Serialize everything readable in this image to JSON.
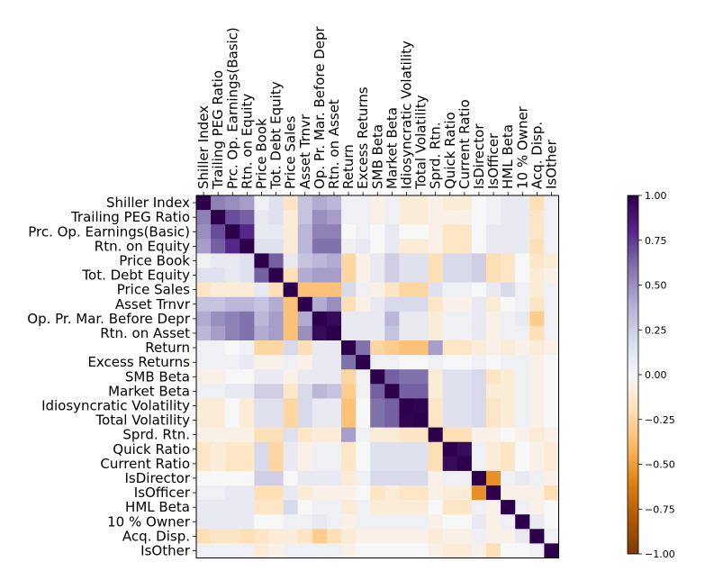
{
  "chart_data": {
    "type": "heatmap",
    "title": "",
    "labels": [
      "Shiller Index",
      "Trailing PEG Ratio",
      "Prc. Op. Earnings(Basic)",
      "Rtn. on Equity",
      "Price Book",
      "Tot. Debt Equity",
      "Price Sales",
      "Asset Trnvr",
      "Op. Pr. Mar. Before Depr",
      "Rtn. on Asset",
      "Return",
      "Excess Returns",
      "SMB Beta",
      "Market Beta",
      "Idiosyncratic Volatility",
      "Total Volatility",
      "Sprd. Rtn.",
      "Quick Ratio",
      "Current Ratio",
      "IsDirector",
      "IsOfficer",
      "HML Beta",
      "10 % Owner",
      "Acq. Disp.",
      "IsOther"
    ],
    "colorbar": {
      "min": -1.0,
      "max": 1.0,
      "ticks": [
        1.0,
        0.75,
        0.5,
        0.25,
        0.0,
        -0.25,
        -0.5,
        -0.75,
        -1.0
      ],
      "tick_labels": [
        "1.00",
        "0.75",
        "0.50",
        "0.25",
        "0.00",
        "−0.25",
        "−0.50",
        "−0.75",
        "−1.00"
      ],
      "colormap": "PuOr_r",
      "neg_color": "#7f3b08",
      "zero_color": "#f7f7f7",
      "pos_color": "#2d004b"
    },
    "values": [
      [
        1.0,
        0.55,
        0.5,
        0.45,
        0.05,
        0.15,
        -0.15,
        0.3,
        0.4,
        0.35,
        0.05,
        0.05,
        -0.05,
        0.05,
        -0.1,
        -0.1,
        -0.05,
        -0.1,
        -0.1,
        0.0,
        0.05,
        0.1,
        0.1,
        -0.2,
        0.05
      ],
      [
        0.55,
        1.0,
        0.7,
        0.65,
        0.1,
        0.15,
        -0.1,
        0.3,
        0.5,
        0.45,
        0.05,
        0.05,
        -0.05,
        0.05,
        -0.1,
        -0.1,
        -0.05,
        -0.05,
        -0.05,
        0.0,
        0.05,
        0.1,
        0.1,
        -0.15,
        0.05
      ],
      [
        0.5,
        0.7,
        1.0,
        0.8,
        0.1,
        0.1,
        -0.1,
        0.35,
        0.55,
        0.55,
        0.0,
        0.05,
        0.0,
        0.1,
        0.0,
        0.0,
        -0.05,
        -0.15,
        -0.15,
        0.0,
        0.1,
        0.1,
        0.1,
        -0.15,
        0.05
      ],
      [
        0.45,
        0.65,
        0.8,
        1.0,
        0.15,
        0.15,
        -0.1,
        0.35,
        0.6,
        0.6,
        0.05,
        0.1,
        0.0,
        0.1,
        -0.1,
        -0.1,
        -0.05,
        -0.15,
        -0.15,
        0.0,
        0.1,
        0.1,
        0.1,
        -0.2,
        0.05
      ],
      [
        0.05,
        0.1,
        0.1,
        0.15,
        1.0,
        0.65,
        0.1,
        0.3,
        0.35,
        0.4,
        -0.25,
        -0.05,
        0.1,
        0.25,
        0.15,
        0.15,
        -0.2,
        0.2,
        0.2,
        0.25,
        -0.2,
        -0.15,
        0.0,
        -0.15,
        -0.1
      ],
      [
        0.15,
        0.15,
        0.1,
        0.15,
        0.65,
        1.0,
        -0.2,
        0.4,
        0.45,
        0.45,
        -0.25,
        -0.05,
        0.1,
        0.25,
        0.15,
        0.15,
        -0.2,
        0.2,
        0.2,
        0.25,
        -0.2,
        -0.15,
        0.0,
        -0.1,
        -0.05
      ],
      [
        -0.15,
        -0.1,
        -0.1,
        -0.1,
        0.1,
        -0.2,
        1.0,
        -0.35,
        -0.35,
        -0.35,
        0.2,
        0.05,
        -0.05,
        -0.15,
        -0.25,
        -0.25,
        0.15,
        0.05,
        0.05,
        0.0,
        0.1,
        0.2,
        0.05,
        -0.1,
        0.05
      ],
      [
        0.3,
        0.3,
        0.35,
        0.35,
        0.3,
        0.4,
        -0.35,
        1.0,
        0.4,
        0.5,
        -0.2,
        -0.05,
        0.1,
        0.2,
        0.2,
        0.2,
        -0.15,
        -0.05,
        -0.05,
        0.1,
        -0.1,
        0.0,
        0.05,
        -0.15,
        0.05
      ],
      [
        0.4,
        0.5,
        0.55,
        0.6,
        0.35,
        0.45,
        -0.35,
        0.4,
        1.0,
        0.95,
        0.1,
        0.1,
        0.1,
        0.35,
        0.1,
        0.1,
        -0.1,
        0.05,
        0.05,
        0.1,
        -0.05,
        0.05,
        0.1,
        -0.3,
        0.05
      ],
      [
        0.35,
        0.45,
        0.55,
        0.6,
        0.4,
        0.45,
        -0.35,
        0.5,
        0.95,
        1.0,
        0.1,
        0.1,
        0.1,
        0.3,
        0.1,
        0.1,
        -0.1,
        0.05,
        0.05,
        0.1,
        -0.05,
        0.05,
        0.05,
        -0.2,
        0.05
      ],
      [
        0.05,
        0.05,
        0.0,
        0.05,
        -0.25,
        -0.25,
        0.2,
        -0.2,
        0.1,
        0.1,
        1.0,
        0.6,
        -0.25,
        -0.3,
        -0.35,
        -0.35,
        0.45,
        -0.15,
        -0.15,
        -0.1,
        -0.05,
        -0.1,
        -0.05,
        -0.1,
        -0.05
      ],
      [
        0.05,
        0.05,
        0.05,
        0.1,
        -0.05,
        -0.05,
        0.05,
        -0.05,
        0.1,
        0.1,
        0.6,
        1.0,
        0.05,
        0.05,
        0.0,
        0.0,
        0.05,
        0.0,
        0.0,
        0.05,
        0.0,
        0.05,
        0.05,
        -0.05,
        0.0
      ],
      [
        -0.05,
        -0.05,
        0.0,
        0.0,
        0.1,
        0.1,
        -0.05,
        0.1,
        0.1,
        0.1,
        -0.25,
        0.05,
        1.0,
        0.65,
        0.6,
        0.6,
        -0.1,
        0.15,
        0.15,
        0.2,
        -0.15,
        -0.1,
        0.05,
        -0.05,
        0.0
      ],
      [
        0.05,
        0.05,
        0.1,
        0.1,
        0.25,
        0.25,
        -0.15,
        0.2,
        0.35,
        0.3,
        -0.3,
        0.05,
        0.65,
        1.0,
        0.65,
        0.65,
        -0.1,
        0.15,
        0.15,
        0.2,
        -0.1,
        -0.1,
        0.05,
        -0.05,
        0.0
      ],
      [
        -0.1,
        -0.1,
        0.0,
        -0.1,
        0.15,
        0.15,
        -0.25,
        0.2,
        0.1,
        0.1,
        -0.35,
        0.0,
        0.6,
        0.65,
        1.0,
        0.98,
        -0.15,
        0.15,
        0.15,
        0.2,
        -0.15,
        -0.1,
        0.05,
        -0.05,
        0.0
      ],
      [
        -0.1,
        -0.1,
        0.0,
        -0.1,
        0.15,
        0.15,
        -0.25,
        0.2,
        0.1,
        0.1,
        -0.35,
        0.0,
        0.6,
        0.65,
        0.98,
        1.0,
        -0.15,
        0.15,
        0.15,
        0.2,
        -0.15,
        -0.1,
        0.05,
        -0.05,
        0.0
      ],
      [
        -0.05,
        -0.05,
        -0.05,
        -0.05,
        -0.2,
        -0.2,
        0.15,
        -0.15,
        -0.1,
        -0.1,
        0.45,
        0.05,
        -0.1,
        -0.1,
        -0.15,
        -0.15,
        1.0,
        -0.2,
        -0.2,
        -0.05,
        -0.05,
        0.0,
        -0.05,
        -0.1,
        -0.05
      ],
      [
        -0.15,
        -0.1,
        -0.15,
        -0.15,
        0.2,
        -0.25,
        0.1,
        -0.05,
        0.05,
        0.05,
        -0.15,
        0.0,
        0.15,
        0.15,
        0.15,
        0.15,
        -0.2,
        1.0,
        0.95,
        0.05,
        -0.1,
        -0.15,
        0.0,
        -0.05,
        -0.1
      ],
      [
        -0.15,
        -0.1,
        -0.15,
        -0.15,
        0.2,
        -0.25,
        0.1,
        -0.05,
        0.05,
        0.05,
        -0.15,
        0.0,
        0.15,
        0.15,
        0.15,
        0.15,
        -0.2,
        0.95,
        1.0,
        0.05,
        -0.1,
        -0.15,
        0.0,
        -0.05,
        -0.1
      ],
      [
        0.0,
        0.0,
        0.0,
        0.0,
        0.25,
        0.25,
        0.0,
        0.1,
        0.1,
        0.1,
        -0.1,
        0.05,
        0.2,
        0.2,
        0.2,
        0.2,
        -0.05,
        0.05,
        0.05,
        1.0,
        -0.55,
        0.05,
        0.1,
        0.05,
        -0.05
      ],
      [
        0.05,
        0.05,
        0.1,
        0.1,
        -0.2,
        -0.2,
        0.1,
        -0.1,
        -0.05,
        -0.05,
        -0.05,
        0.0,
        -0.15,
        -0.1,
        -0.15,
        -0.15,
        -0.05,
        -0.1,
        -0.1,
        -0.55,
        1.0,
        -0.05,
        -0.05,
        -0.05,
        -0.2
      ],
      [
        0.1,
        0.1,
        0.1,
        0.1,
        -0.15,
        -0.15,
        0.2,
        0.0,
        0.05,
        0.05,
        -0.1,
        0.05,
        -0.1,
        -0.1,
        -0.1,
        -0.1,
        0.0,
        -0.15,
        -0.15,
        0.05,
        -0.05,
        1.0,
        0.05,
        -0.05,
        0.0
      ],
      [
        0.1,
        0.1,
        0.1,
        0.1,
        0.0,
        0.0,
        0.05,
        0.05,
        0.1,
        0.05,
        -0.05,
        0.05,
        0.05,
        0.05,
        0.05,
        0.05,
        -0.05,
        0.0,
        0.0,
        0.1,
        -0.05,
        0.05,
        1.0,
        0.1,
        0.0
      ],
      [
        -0.2,
        -0.15,
        -0.15,
        -0.2,
        -0.15,
        -0.1,
        -0.1,
        -0.15,
        -0.3,
        -0.2,
        -0.1,
        -0.05,
        -0.05,
        -0.05,
        -0.05,
        -0.05,
        -0.1,
        -0.05,
        -0.05,
        0.05,
        -0.05,
        -0.05,
        0.1,
        1.0,
        0.05
      ],
      [
        0.05,
        0.05,
        0.05,
        0.05,
        -0.1,
        -0.05,
        0.05,
        0.05,
        0.05,
        0.05,
        -0.05,
        0.0,
        0.0,
        0.0,
        0.0,
        0.0,
        -0.05,
        -0.1,
        -0.1,
        -0.05,
        -0.2,
        0.0,
        0.0,
        0.05,
        1.0
      ]
    ]
  }
}
